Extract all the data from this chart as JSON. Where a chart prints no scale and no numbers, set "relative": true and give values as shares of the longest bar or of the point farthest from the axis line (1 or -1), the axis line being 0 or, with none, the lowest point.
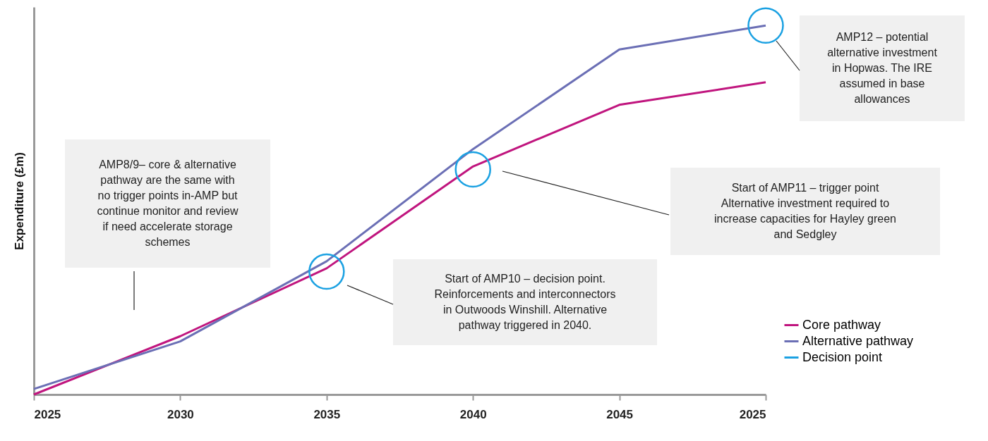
{
  "chart_data": {
    "type": "line",
    "relative": true,
    "ylabel": "Expenditure (£m)",
    "categories": [
      "2025",
      "2030",
      "2035",
      "2040",
      "2045",
      "2025"
    ],
    "series": [
      {
        "name": "Core pathway",
        "color": "#c0157e",
        "type": "line",
        "values": [
          0,
          0.158,
          0.342,
          0.618,
          0.785,
          0.846
        ]
      },
      {
        "name": "Alternative pathway",
        "color": "#6b6fb5",
        "type": "line",
        "values": [
          0.015,
          0.144,
          0.361,
          0.665,
          0.935,
          1
        ]
      },
      {
        "name": "Decision point",
        "color": "#1ba1e2",
        "type": "scatter",
        "values": [
          null,
          null,
          0.333,
          0.61,
          null,
          1
        ]
      }
    ],
    "annotations": [
      "AMP8/9– core & alternative\npathway are the same with\nno trigger points in-AMP but\ncontinue monitor and review\nif need accelerate storage\nschemes",
      "Start of AMP10 – decision point.\nReinforcements and interconnectors\nin Outwoods Winshill. Alternative\npathway triggered in 2040.",
      "Start of AMP11 – trigger point\nAlternative investment required to\nincrease capacities for Hayley green\nand Sedgley",
      "AMP12 – potential\nalternative investment\nin Hopwas. The IRE\nassumed in base\nallowances"
    ],
    "legend": "bottom right",
    "grid": false,
    "line_style": "solid"
  }
}
